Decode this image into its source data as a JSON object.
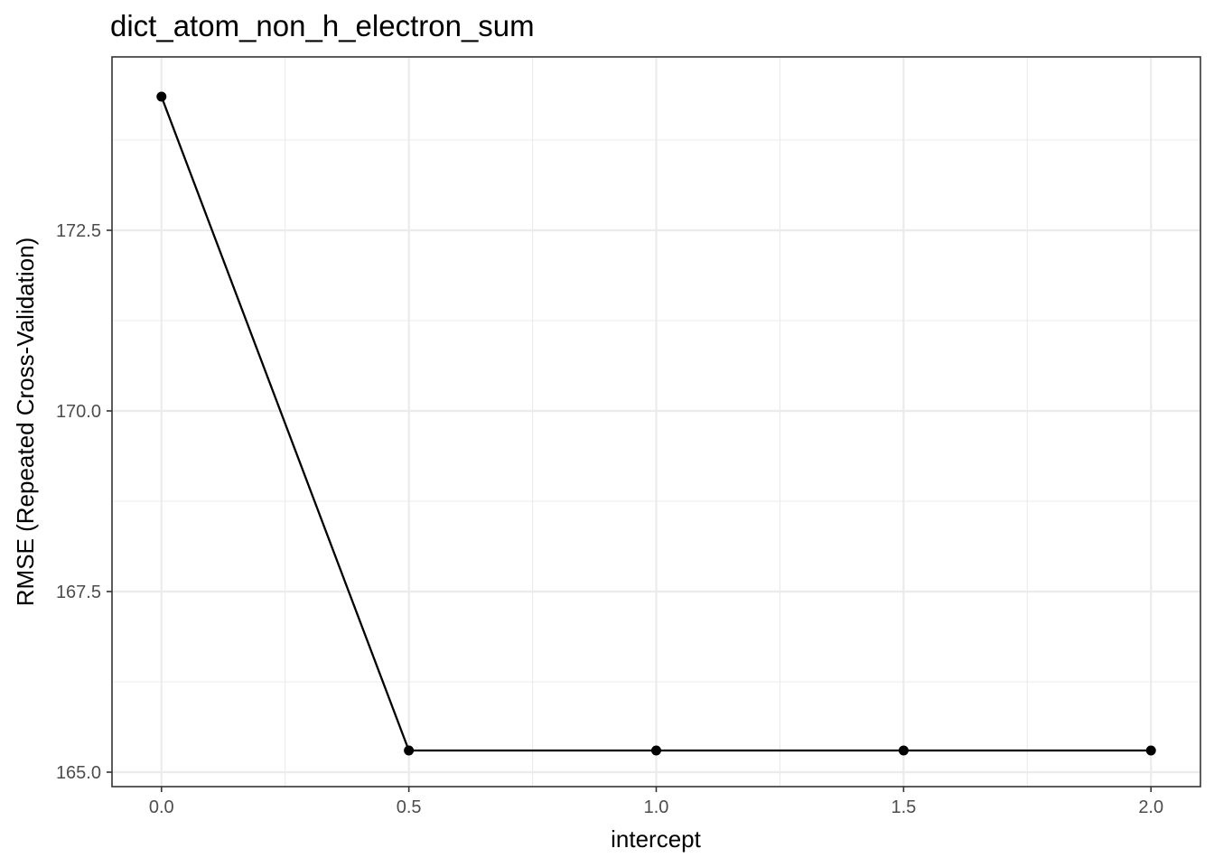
{
  "chart_data": {
    "type": "line",
    "title": "dict_atom_non_h_electron_sum",
    "xlabel": "intercept",
    "ylabel": "RMSE (Repeated Cross-Validation)",
    "x": [
      0.0,
      0.5,
      1.0,
      1.5,
      2.0
    ],
    "series": [
      {
        "values": [
          174.35,
          165.3,
          165.3,
          165.3,
          165.3
        ],
        "color": "#000000"
      }
    ],
    "xlim": [
      -0.1,
      2.1
    ],
    "ylim": [
      164.8,
      174.9
    ],
    "x_ticks": [
      0.0,
      0.5,
      1.0,
      1.5,
      2.0
    ],
    "x_tick_labels": [
      "0.0",
      "0.5",
      "1.0",
      "1.5",
      "2.0"
    ],
    "y_ticks": [
      165.0,
      167.5,
      170.0,
      172.5
    ],
    "y_tick_labels": [
      "165.0",
      "167.5",
      "170.0",
      "172.5"
    ],
    "grid": true,
    "legend": "none"
  }
}
